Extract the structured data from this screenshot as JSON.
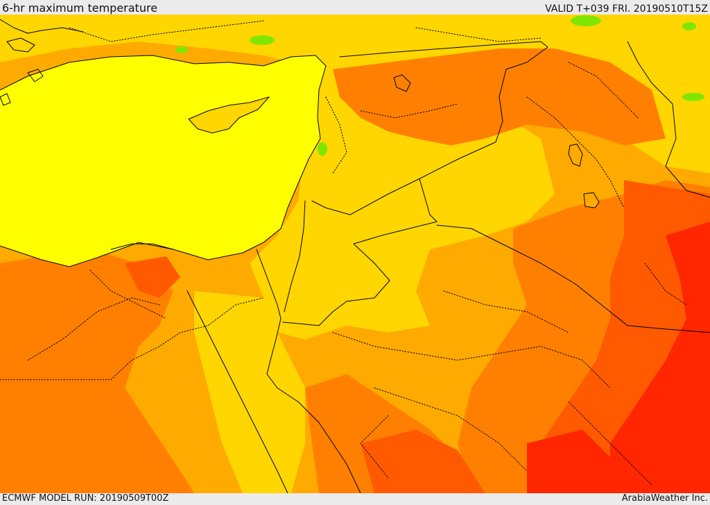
{
  "header": {
    "title": "6-hr maximum temperature",
    "valid_time": "VALID T+039 FRI. 20190510T15Z"
  },
  "footer": {
    "model_run": "ECMWF MODEL RUN: 20190509T00Z",
    "credit": "ArabiaWeather Inc."
  },
  "map": {
    "colors": {
      "sea": "#ffff00",
      "yellow_band": "#ffd600",
      "light_orange": "#ffaa00",
      "orange": "#ff8000",
      "dark_orange": "#ff5a00",
      "red": "#ff2600",
      "green": "#7fe600",
      "border": "#000000"
    }
  }
}
